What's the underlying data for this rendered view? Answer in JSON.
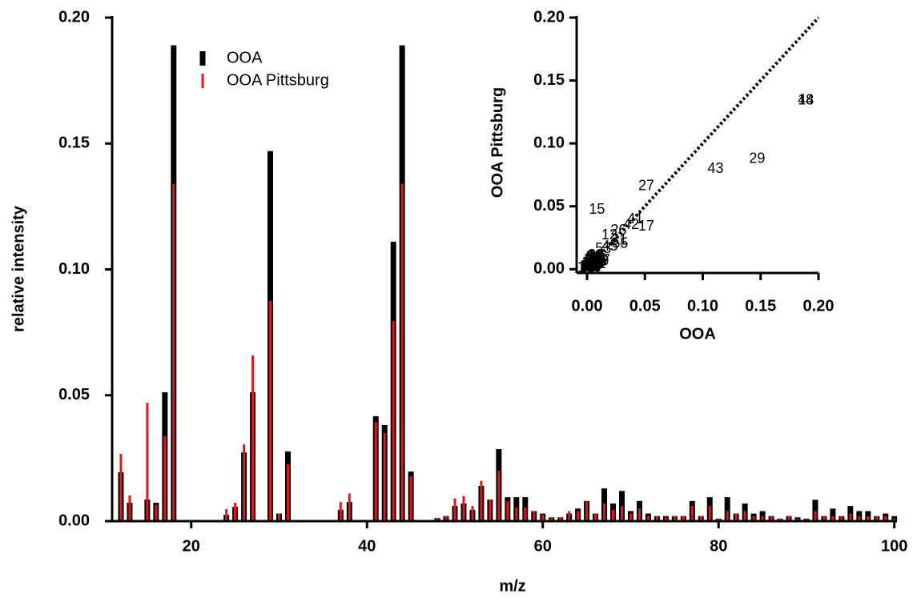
{
  "chart_data": [
    {
      "type": "bar",
      "xlabel": "m/z",
      "ylabel": "relative intensity",
      "x": [
        12,
        13,
        15,
        16,
        17,
        18,
        24,
        25,
        26,
        27,
        29,
        30,
        31,
        37,
        38,
        41,
        42,
        43,
        44,
        45,
        48,
        49,
        50,
        51,
        52,
        53,
        54,
        55,
        56,
        57,
        58,
        59,
        60,
        61,
        62,
        63,
        64,
        65,
        66,
        67,
        68,
        69,
        70,
        71,
        72,
        73,
        74,
        75,
        76,
        77,
        78,
        79,
        80,
        81,
        82,
        83,
        84,
        85,
        86,
        87,
        88,
        89,
        90,
        91,
        92,
        93,
        94,
        95,
        96,
        97,
        98,
        99,
        100
      ],
      "series": [
        {
          "name": "OOA",
          "color": "#000000",
          "values": [
            0.0194,
            0.0073,
            0.0086,
            0.0073,
            0.0512,
            0.189,
            0.0025,
            0.0057,
            0.0273,
            0.0512,
            0.147,
            0.003,
            0.0277,
            0.0045,
            0.0076,
            0.0417,
            0.0382,
            0.111,
            0.189,
            0.0197,
            0.0012,
            0.002,
            0.006,
            0.007,
            0.0045,
            0.014,
            0.0086,
            0.0286,
            0.0095,
            0.0095,
            0.0095,
            0.004,
            0.003,
            0.0015,
            0.0015,
            0.003,
            0.005,
            0.008,
            0.003,
            0.013,
            0.007,
            0.012,
            0.004,
            0.008,
            0.003,
            0.002,
            0.002,
            0.002,
            0.002,
            0.008,
            0.002,
            0.0095,
            0.001,
            0.0095,
            0.003,
            0.007,
            0.003,
            0.004,
            0.002,
            0.001,
            0.002,
            0.0015,
            0.001,
            0.0085,
            0.002,
            0.005,
            0.002,
            0.006,
            0.004,
            0.004,
            0.002,
            0.003,
            0.002
          ]
        },
        {
          "name": "OOA Pittsburg",
          "color": "#e8141c",
          "values": [
            0.0267,
            0.0102,
            0.047,
            0.0064,
            0.0337,
            0.134,
            0.0048,
            0.0073,
            0.0305,
            0.0658,
            0.0874,
            0.003,
            0.0226,
            0.0076,
            0.011,
            0.0394,
            0.035,
            0.0795,
            0.134,
            0.0178,
            0.0012,
            0.002,
            0.009,
            0.01,
            0.006,
            0.016,
            0.0086,
            0.02,
            0.008,
            0.0054,
            0.0054,
            0.004,
            0.0025,
            0.0015,
            0.0015,
            0.004,
            0.004,
            0.008,
            0.003,
            0.007,
            0.0045,
            0.006,
            0.003,
            0.005,
            0.002,
            0.002,
            0.0015,
            0.002,
            0.002,
            0.006,
            0.002,
            0.006,
            0.001,
            0.004,
            0.003,
            0.004,
            0.002,
            0.002,
            0.002,
            0.001,
            0.002,
            0.001,
            0.001,
            0.004,
            0.002,
            0.002,
            0.002,
            0.003,
            0.002,
            0.002,
            0.002,
            0.002,
            0.001
          ]
        }
      ],
      "xlim": [
        11,
        100.3
      ],
      "ylim": [
        0,
        0.2
      ],
      "xticks": [
        20,
        40,
        60,
        80,
        100
      ],
      "yticks": [
        {
          "value": 0,
          "label": "0.00"
        },
        {
          "value": 0.05,
          "label": "0.05"
        },
        {
          "value": 0.1,
          "label": "0.10"
        },
        {
          "value": 0.15,
          "label": "0.15"
        },
        {
          "value": 0.2,
          "label": "0.20"
        }
      ],
      "legend": "top-left"
    },
    {
      "type": "scatter",
      "xlabel": "OOA",
      "ylabel": "OOA Pittsburg",
      "labels": [
        "12",
        "13",
        "15",
        "16",
        "17",
        "18",
        "24",
        "25",
        "26",
        "27",
        "29",
        "30",
        "31",
        "37",
        "38",
        "41",
        "42",
        "43",
        "44",
        "45",
        "48",
        "49",
        "50",
        "51",
        "52",
        "53",
        "54",
        "55",
        "56",
        "57",
        "58",
        "59",
        "60",
        "61",
        "62",
        "63",
        "64",
        "65",
        "66",
        "67",
        "68",
        "69",
        "70",
        "71",
        "72",
        "73",
        "74",
        "75",
        "76",
        "77",
        "78",
        "79",
        "80",
        "81",
        "82",
        "83",
        "84",
        "85",
        "86",
        "87",
        "88",
        "89",
        "90",
        "91",
        "92",
        "93",
        "94",
        "95",
        "96",
        "97",
        "98",
        "99",
        "100"
      ],
      "x": [
        0.0194,
        0.0073,
        0.0086,
        0.0073,
        0.0512,
        0.189,
        0.0025,
        0.0057,
        0.0273,
        0.0512,
        0.147,
        0.003,
        0.0277,
        0.0045,
        0.0076,
        0.0417,
        0.0382,
        0.111,
        0.189,
        0.0197,
        0.0012,
        0.002,
        0.006,
        0.007,
        0.0045,
        0.014,
        0.0086,
        0.0286,
        0.0095,
        0.0095,
        0.0095,
        0.004,
        0.003,
        0.0015,
        0.0015,
        0.003,
        0.005,
        0.008,
        0.003,
        0.013,
        0.007,
        0.012,
        0.004,
        0.008,
        0.003,
        0.002,
        0.002,
        0.002,
        0.002,
        0.008,
        0.002,
        0.0095,
        0.001,
        0.0095,
        0.003,
        0.007,
        0.003,
        0.004,
        0.002,
        0.001,
        0.002,
        0.0015,
        0.001,
        0.0085,
        0.002,
        0.005,
        0.002,
        0.006,
        0.004,
        0.004,
        0.002,
        0.003,
        0.002
      ],
      "y": [
        0.0267,
        0.0102,
        0.047,
        0.0064,
        0.0337,
        0.134,
        0.0048,
        0.0073,
        0.0305,
        0.0658,
        0.0874,
        0.003,
        0.0226,
        0.0076,
        0.011,
        0.0394,
        0.035,
        0.0795,
        0.134,
        0.0178,
        0.0012,
        0.002,
        0.009,
        0.01,
        0.006,
        0.016,
        0.0086,
        0.02,
        0.008,
        0.0054,
        0.0054,
        0.004,
        0.0025,
        0.0015,
        0.0015,
        0.004,
        0.004,
        0.008,
        0.003,
        0.007,
        0.0045,
        0.006,
        0.003,
        0.005,
        0.002,
        0.002,
        0.0015,
        0.002,
        0.002,
        0.006,
        0.002,
        0.006,
        0.001,
        0.004,
        0.003,
        0.004,
        0.002,
        0.002,
        0.002,
        0.001,
        0.002,
        0.001,
        0.001,
        0.004,
        0.002,
        0.002,
        0.002,
        0.003,
        0.002,
        0.002,
        0.002,
        0.002,
        0.001
      ],
      "xlim": [
        -0.009,
        0.2
      ],
      "ylim": [
        -0.003,
        0.2
      ],
      "xticks": [
        {
          "value": 0,
          "label": "0.00"
        },
        {
          "value": 0.05,
          "label": "0.05"
        },
        {
          "value": 0.1,
          "label": "0.10"
        },
        {
          "value": 0.15,
          "label": "0.15"
        },
        {
          "value": 0.2,
          "label": "0.20"
        }
      ],
      "yticks": [
        {
          "value": 0,
          "label": "0.00"
        },
        {
          "value": 0.05,
          "label": "0.05"
        },
        {
          "value": 0.1,
          "label": "0.10"
        },
        {
          "value": 0.15,
          "label": "0.15"
        },
        {
          "value": 0.2,
          "label": "0.20"
        }
      ],
      "identity_line": true
    }
  ]
}
